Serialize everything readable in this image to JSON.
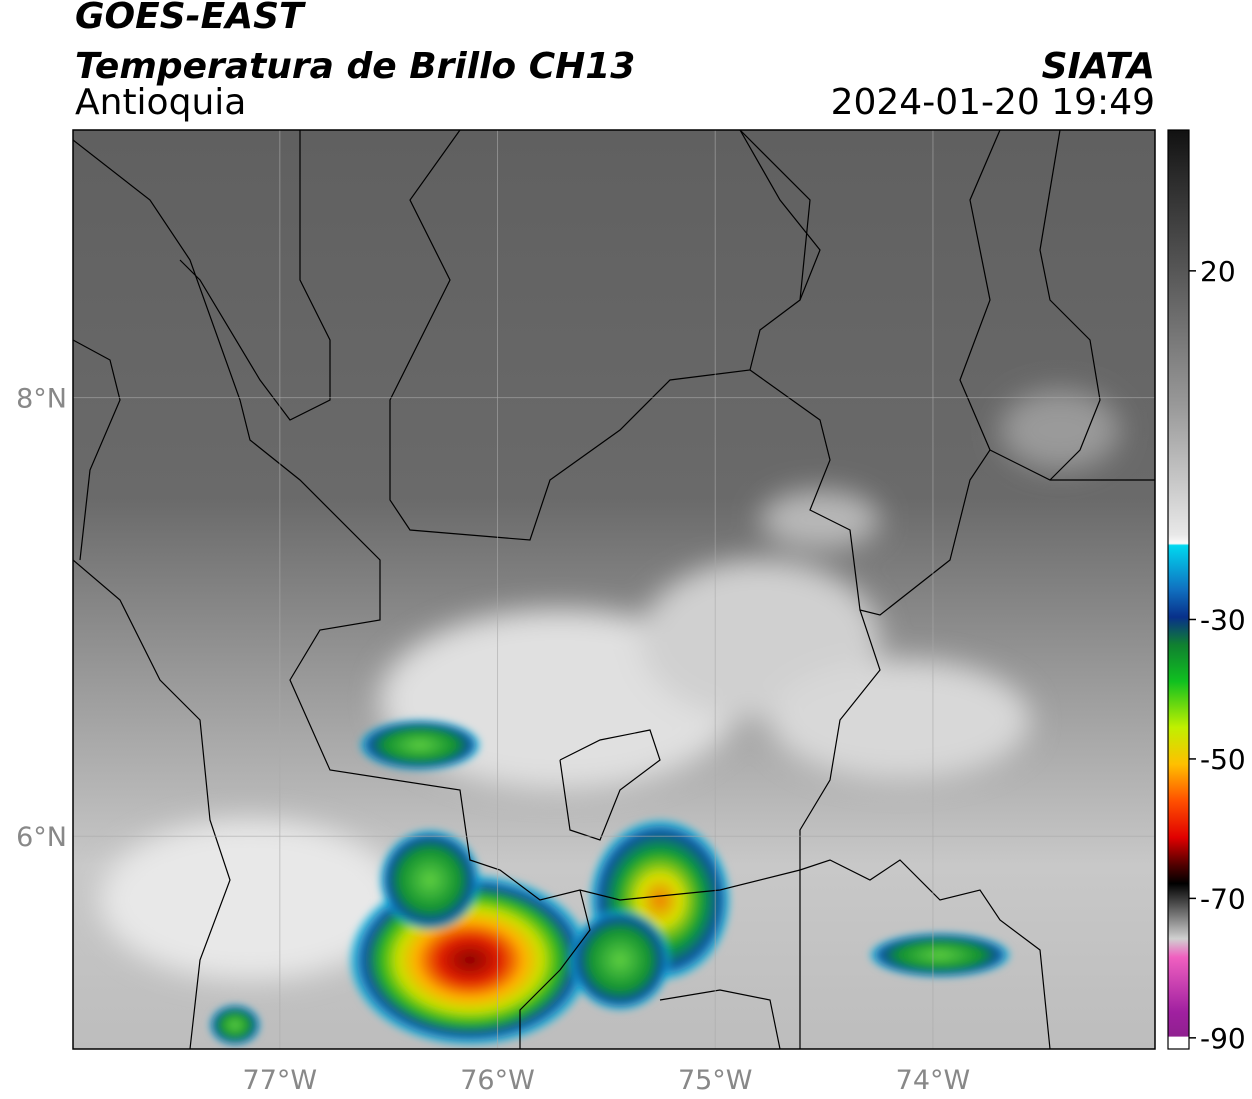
{
  "header": {
    "title": "GOES-EAST",
    "subtitle": "Temperatura de Brillo CH13",
    "region": "Antioquia",
    "source": "SIATA",
    "datetime": "2024-01-20 19:49"
  },
  "map": {
    "xlim": [
      -77.95,
      -72.98
    ],
    "ylim": [
      5.03,
      9.22
    ],
    "xticks": [
      {
        "value": -77,
        "label": "77°W"
      },
      {
        "value": -76,
        "label": "76°W"
      },
      {
        "value": -75,
        "label": "75°W"
      },
      {
        "value": -74,
        "label": "74°W"
      }
    ],
    "yticks": [
      {
        "value": 6,
        "label": "6°N"
      },
      {
        "value": 8,
        "label": "8°N"
      }
    ],
    "grid": true
  },
  "colorbar": {
    "clim": [
      -91.6,
      40.2
    ],
    "ticks": [
      20,
      -30,
      -50,
      -70,
      -90
    ]
  }
}
